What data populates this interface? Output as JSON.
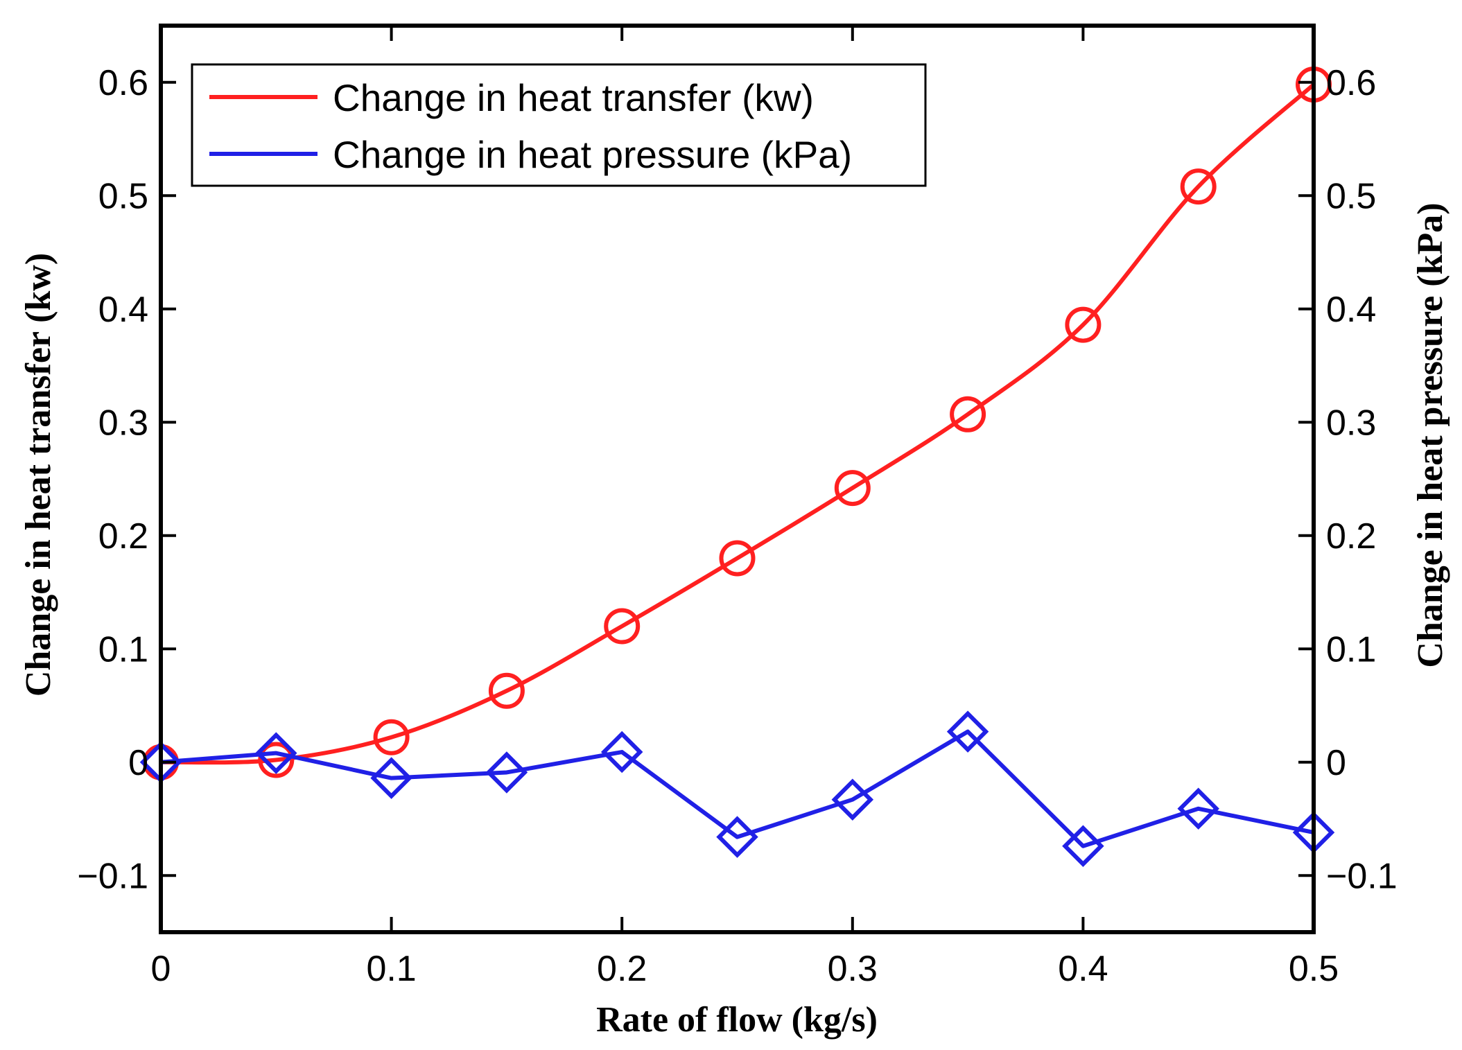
{
  "chart_data": {
    "type": "line",
    "xlabel": "Rate of flow (kg/s)",
    "ylabel_left": "Change in heat transfer (kw)",
    "ylabel_right": "Change in heat pressure (kPa)",
    "xlim": [
      0,
      0.5
    ],
    "ylim": [
      -0.15,
      0.65
    ],
    "x_ticks": [
      "0",
      "0.1",
      "0.2",
      "0.3",
      "0.4",
      "0.5"
    ],
    "x_tick_values": [
      0,
      0.1,
      0.2,
      0.3,
      0.4,
      0.5
    ],
    "y_ticks": [
      "−0.1",
      "0",
      "0.1",
      "0.2",
      "0.3",
      "0.4",
      "0.5",
      "0.6"
    ],
    "y_tick_values": [
      -0.1,
      0,
      0.1,
      0.2,
      0.3,
      0.4,
      0.5,
      0.6
    ],
    "grid": false,
    "legend_position": "top-left",
    "x": [
      0,
      0.05,
      0.1,
      0.15,
      0.2,
      0.25,
      0.3,
      0.35,
      0.4,
      0.45,
      0.5
    ],
    "series": [
      {
        "name": "Change in heat transfer (kw)",
        "color": "#ff2020",
        "marker": "circle",
        "smooth": true,
        "values": [
          0,
          0.002,
          0.022,
          0.063,
          0.12,
          0.18,
          0.242,
          0.307,
          0.386,
          0.508,
          0.598
        ]
      },
      {
        "name": "Change in heat pressure (kPa)",
        "color": "#2020e6",
        "marker": "diamond",
        "smooth": false,
        "values": [
          0,
          0.008,
          -0.014,
          -0.009,
          0.009,
          -0.066,
          -0.033,
          0.027,
          -0.074,
          -0.041,
          -0.062
        ]
      }
    ]
  }
}
